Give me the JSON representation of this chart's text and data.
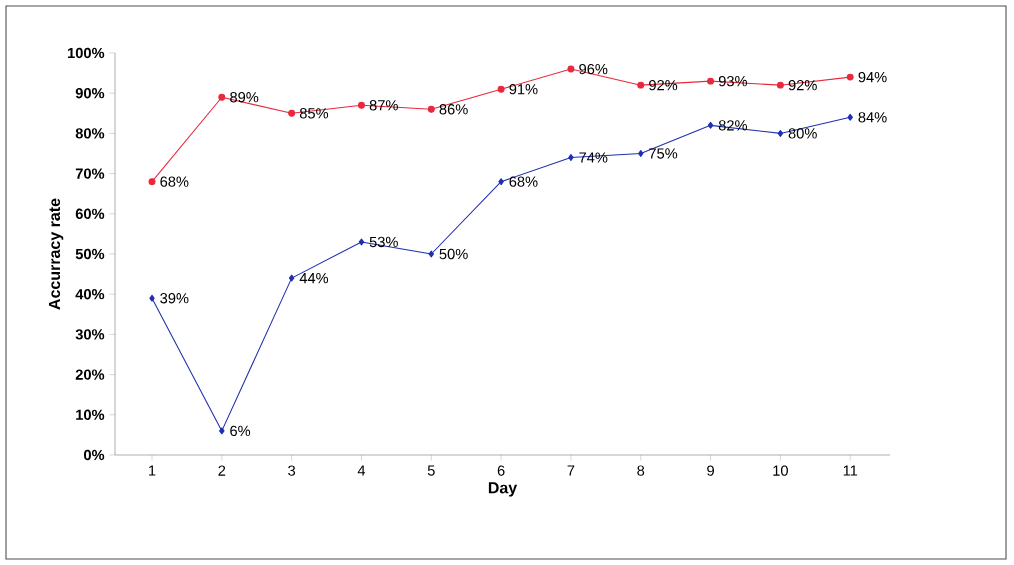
{
  "chart_data": {
    "type": "line",
    "xlabel": "Day",
    "ylabel": "Accurracy rate",
    "categories": [
      "1",
      "2",
      "3",
      "4",
      "5",
      "6",
      "7",
      "8",
      "9",
      "10",
      "11"
    ],
    "ylim": [
      0,
      100
    ],
    "yticks": [
      {
        "value": 0,
        "label": "0%"
      },
      {
        "value": 10,
        "label": "10%"
      },
      {
        "value": 20,
        "label": "20%"
      },
      {
        "value": 30,
        "label": "30%"
      },
      {
        "value": 40,
        "label": "40%"
      },
      {
        "value": 50,
        "label": "50%"
      },
      {
        "value": 60,
        "label": "60%"
      },
      {
        "value": 70,
        "label": "70%"
      },
      {
        "value": 80,
        "label": "80%"
      },
      {
        "value": 90,
        "label": "90%"
      },
      {
        "value": 100,
        "label": "100%"
      }
    ],
    "series": [
      {
        "color": "#e8283c",
        "marker": "circle",
        "values": [
          68,
          89,
          85,
          87,
          86,
          91,
          96,
          92,
          93,
          92,
          94
        ],
        "value_labels": [
          "68%",
          "89%",
          "85%",
          "87%",
          "86%",
          "91%",
          "96%",
          "92%",
          "93%",
          "92%",
          "94%"
        ]
      },
      {
        "color": "#1f2fb0",
        "marker": "diamond",
        "values": [
          39,
          6,
          44,
          53,
          50,
          68,
          74,
          75,
          82,
          80,
          84
        ],
        "value_labels": [
          "39%",
          "6%",
          "44%",
          "53%",
          "50%",
          "68%",
          "74%",
          "75%",
          "82%",
          "80%",
          "84%"
        ]
      }
    ]
  }
}
